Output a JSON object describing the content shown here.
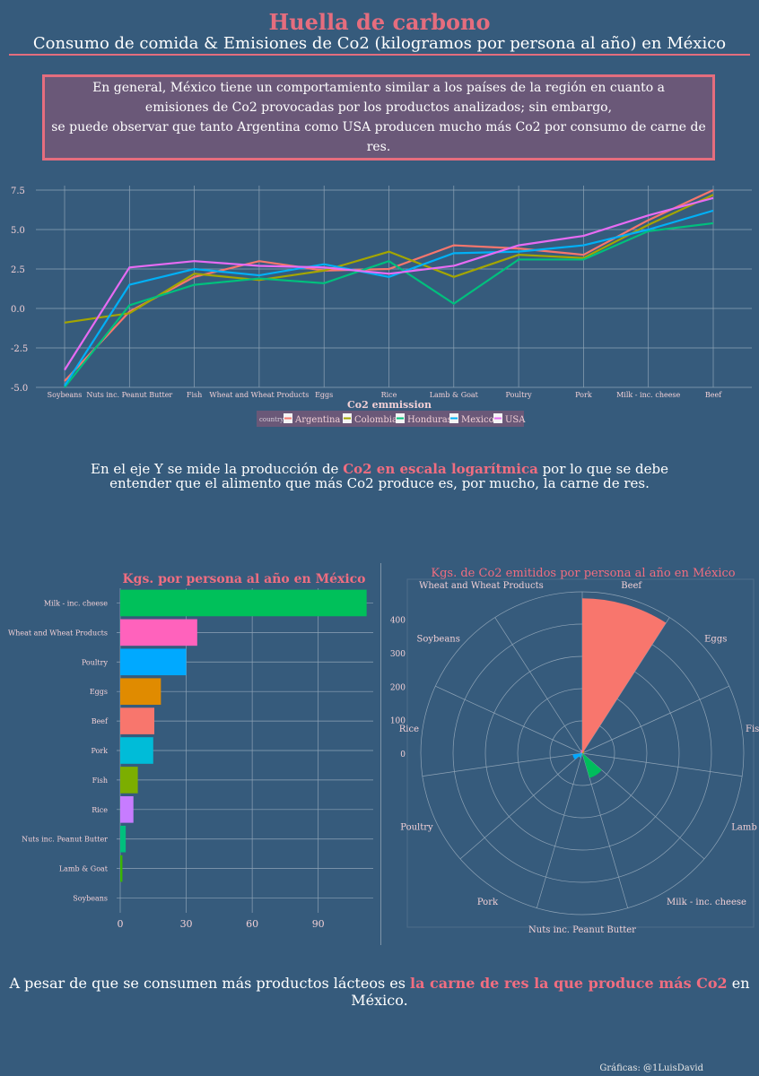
{
  "header": {
    "title": "Huella de carbono",
    "subtitle": "Consumo de  comida & Emisiones  de  Co2 (kilogramos   por  persona  al   año)  en  México"
  },
  "note": {
    "lines": [
      "En general, México tiene un comportamiento similar a los países de la región en cuanto a",
      "emisiones de Co2 provocadas por los productos analizados; sin embargo,",
      "se puede observar que tanto Argentina como USA producen mucho más Co2 por consumo de carne de res."
    ]
  },
  "middle_text": {
    "line1_before": "En el   eje   Y se  mide la   producción  de ",
    "line1_highlight": "Co2 en escala logarítmica",
    "line1_after": " por  lo   que se  debe",
    "line2": "entender  que el   alimento  que más Co2 produce es,   por  mucho, la   carne  de  res."
  },
  "bottom_text": {
    "before": "A pesar  de  que se  consumen más productos  lácteos    es ",
    "highlight": " la  carne de res  la  que produce más Co2",
    "after": " en  México."
  },
  "credit": "Gráficas: @1LuisDavid",
  "colors": {
    "background": "#365b7c",
    "accent": "#e56d7e",
    "grid": "#8ea3b6"
  },
  "chart_data": [
    {
      "type": "line",
      "title": "",
      "xlabel": "Co2 emmission",
      "ylabel": "",
      "ylim": [
        -5.0,
        7.5
      ],
      "y_ticks": [
        "7.5",
        "5.0",
        "2.5",
        "0.0",
        "-2.5",
        "-5.0"
      ],
      "grid": true,
      "legend_title": "country",
      "legend_position": "bottom",
      "categories": [
        "Soybeans",
        "Nuts inc. Peanut Butter",
        "Fish",
        "Wheat and Wheat Products",
        "Eggs",
        "Rice",
        "Lamb & Goat",
        "Poultry",
        "Pork",
        "Milk - inc. cheese",
        "Beef"
      ],
      "series": [
        {
          "name": "Argentina",
          "color": "#f8766d",
          "values": [
            -4.6,
            -0.2,
            2.0,
            3.0,
            2.4,
            2.5,
            4.0,
            3.8,
            3.4,
            5.6,
            7.5
          ]
        },
        {
          "name": "Colombia",
          "color": "#a3a500",
          "values": [
            -0.9,
            -0.3,
            2.2,
            1.8,
            2.4,
            3.6,
            2.0,
            3.4,
            3.2,
            5.3,
            7.2
          ]
        },
        {
          "name": "Honduras",
          "color": "#00bf7d",
          "values": [
            -5.0,
            0.2,
            1.5,
            1.9,
            1.6,
            3.0,
            0.3,
            3.1,
            3.1,
            4.9,
            5.4
          ]
        },
        {
          "name": "Mexico",
          "color": "#00b0f6",
          "values": [
            -4.9,
            1.5,
            2.5,
            2.1,
            2.8,
            2.0,
            3.5,
            3.6,
            4.0,
            5.0,
            6.2
          ]
        },
        {
          "name": "USA",
          "color": "#e76bf3",
          "values": [
            -3.9,
            2.6,
            3.0,
            2.7,
            2.6,
            2.2,
            2.7,
            4.0,
            4.6,
            5.9,
            7.0
          ]
        }
      ]
    },
    {
      "type": "bar",
      "orientation": "horizontal",
      "title": "Kgs.  por persona al   año en México",
      "xlim": [
        0,
        115
      ],
      "x_ticks": [
        0,
        30,
        60,
        90
      ],
      "categories": [
        "Milk - inc. cheese",
        "Wheat and Wheat Products",
        "Poultry",
        "Eggs",
        "Beef",
        "Pork",
        "Fish",
        "Rice",
        "Nuts inc. Peanut Butter",
        "Lamb & Goat",
        "Soybeans"
      ],
      "values": [
        112,
        35,
        30,
        18.5,
        15.5,
        15,
        8,
        6,
        2.5,
        1,
        0
      ],
      "colors": [
        "#00c05a",
        "#ff62bc",
        "#00a9ff",
        "#e08b00",
        "#f8766d",
        "#00bcd8",
        "#7cae00",
        "#c77cff",
        "#00bf7d",
        "#39b600",
        "#e76bf3"
      ]
    },
    {
      "type": "polar-bar",
      "title": "Kgs.  de  Co2 emitidos  por  persona  al   año en  México",
      "rlim": [
        0,
        500
      ],
      "r_ticks": [
        0,
        100,
        200,
        300,
        400
      ],
      "grid": true,
      "categories": [
        "Beef",
        "Eggs",
        "Fish",
        "Lamb & Goat",
        "Milk - inc. cheese",
        "Nuts inc. Peanut Butter",
        "Pork",
        "Poultry",
        "Rice",
        "Soybeans",
        "Wheat and Wheat Products"
      ],
      "values": [
        480,
        8,
        5,
        3,
        80,
        2,
        15,
        30,
        5,
        0,
        10
      ],
      "colors": [
        "#f8766d",
        "#db8e00",
        "#aea200",
        "#64b200",
        "#00bd5c",
        "#00c1a7",
        "#00bade",
        "#00a6ff",
        "#b385ff",
        "#ef67eb",
        "#ff63b6"
      ]
    }
  ]
}
